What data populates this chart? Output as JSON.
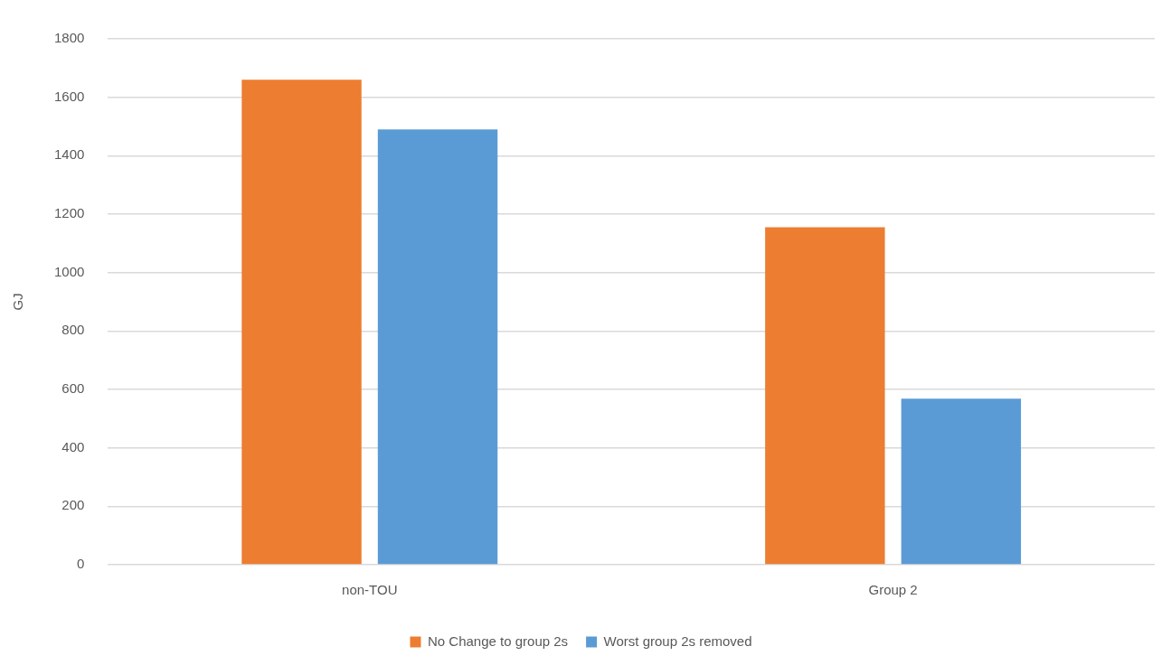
{
  "chart_data": {
    "type": "bar",
    "ylabel": "GJ",
    "categories": [
      "non-TOU",
      "Group 2"
    ],
    "series": [
      {
        "name": "No Change to group 2s",
        "color": "#ed7d31",
        "values": [
          1660,
          1155
        ]
      },
      {
        "name": "Worst group 2s removed",
        "color": "#5b9bd5",
        "values": [
          1490,
          568
        ]
      }
    ],
    "ylim": [
      0,
      1800
    ],
    "yticks": [
      0,
      200,
      400,
      600,
      800,
      1000,
      1200,
      1400,
      1600,
      1800
    ],
    "grid": "y",
    "legend": "bottom"
  }
}
